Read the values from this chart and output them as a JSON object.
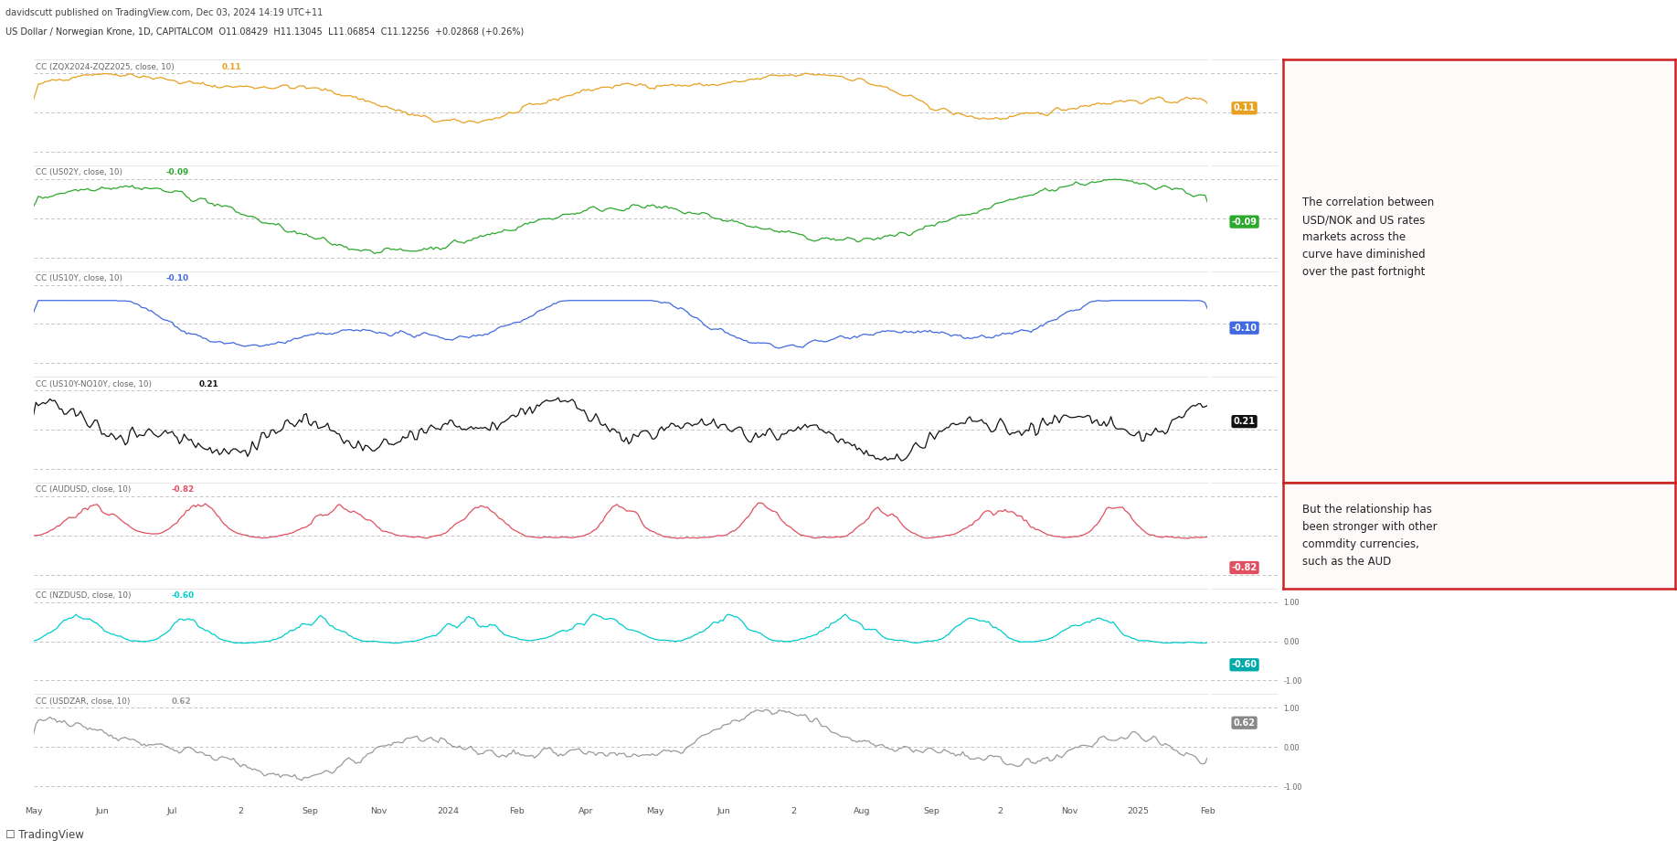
{
  "title_top": "davidscutt published on TradingView.com, Dec 03, 2024 14:19 UTC+11",
  "title_sub": "US Dollar / Norwegian Krone, 1D, CAPITALCOM  O11.08429  H11.13045  L11.06854  C11.12256  +0.02868 (+0.26%)",
  "series": [
    {
      "label": "CC (ZQX2024-ZQZ2025, close, 10)",
      "value": "0.11",
      "color": "#e8a020",
      "badge_color": "#e8a020"
    },
    {
      "label": "CC (US02Y, close, 10)",
      "value": "-0.09",
      "color": "#2ca82c",
      "badge_color": "#2ca82c"
    },
    {
      "label": "CC (US10Y, close, 10)",
      "value": "-0.10",
      "color": "#4169e1",
      "badge_color": "#4169e1"
    },
    {
      "label": "CC (US10Y-NO10Y, close, 10)",
      "value": "0.21",
      "color": "#111111",
      "badge_color": "#111111"
    },
    {
      "label": "CC (AUDUSD, close, 10)",
      "value": "-0.82",
      "color": "#e05060",
      "badge_color": "#e05060"
    },
    {
      "label": "CC (NZDUSD, close, 10)",
      "value": "-0.60",
      "color": "#00cccc",
      "badge_color": "#00aaaa"
    },
    {
      "label": "CC (USDZAR, close, 10)",
      "value": "0.62",
      "color": "#999999",
      "badge_color": "#888888"
    }
  ],
  "annotation1_text": "The correlation between\nUSD/NOK and US rates\nmarkets across the\ncurve have diminished\nover the past fortnight",
  "annotation2_text": "But the relationship has\nbeen stronger with other\ncommdity currencies,\nsuch as the AUD",
  "x_tick_labels": [
    "May",
    "Jun",
    "Jul",
    "2",
    "Sep",
    "Nov",
    "2024",
    "Feb",
    "Apr",
    "May",
    "Jun",
    "2",
    "Aug",
    "Sep",
    "2",
    "Nov",
    "2025",
    "Feb"
  ],
  "n_points": 500,
  "bg_color": "#ffffff",
  "grid_color": "#aaaaaa",
  "dashed_levels": [
    -1.0,
    0.0,
    1.0
  ],
  "ann1_series": [
    0,
    3
  ],
  "ann2_series": [
    4,
    4
  ]
}
